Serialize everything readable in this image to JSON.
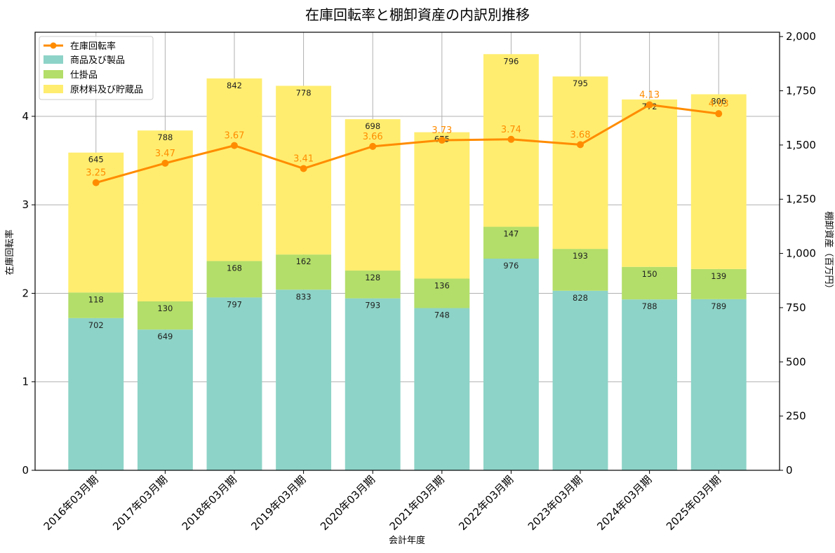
{
  "chart_data": {
    "type": "bar",
    "title": "在庫回転率と棚卸資産の内訳別推移",
    "xlabel": "会計年度",
    "ylabel_left": "在庫回転率",
    "ylabel_right": "棚卸資産（百万円）",
    "categories": [
      "2016年03月期",
      "2017年03月期",
      "2018年03月期",
      "2019年03月期",
      "2020年03月期",
      "2021年03月期",
      "2022年03月期",
      "2023年03月期",
      "2024年03月期",
      "2025年03月期"
    ],
    "ylim_left": [
      0,
      4.95
    ],
    "ylim_right": [
      0,
      2020
    ],
    "yticks_left": [
      "0",
      "1",
      "2",
      "3",
      "4"
    ],
    "yticks_right": [
      "0",
      "250",
      "500",
      "750",
      "1,000",
      "1,250",
      "1,500",
      "1,750",
      "2,000"
    ],
    "grid": true,
    "legend_position": "top-left",
    "stacked_series": [
      {
        "name": "商品及び製品",
        "color": "#8dd3c7",
        "values": [
          702,
          649,
          797,
          833,
          793,
          748,
          976,
          828,
          788,
          789
        ]
      },
      {
        "name": "仕掛品",
        "color": "#b3de69",
        "values": [
          118,
          130,
          168,
          162,
          128,
          136,
          147,
          193,
          150,
          139
        ]
      },
      {
        "name": "原材料及び貯蔵品",
        "color": "#ffed6f",
        "values": [
          645,
          788,
          842,
          778,
          698,
          675,
          796,
          795,
          772,
          806
        ]
      }
    ],
    "line_series": {
      "name": "在庫回転率",
      "color": "#ff8c00",
      "values": [
        3.25,
        3.47,
        3.67,
        3.41,
        3.66,
        3.73,
        3.74,
        3.68,
        4.13,
        4.03
      ],
      "labels": [
        "3.25",
        "3.47",
        "3.67",
        "3.41",
        "3.66",
        "3.73",
        "3.74",
        "3.68",
        "4.13",
        "4.03"
      ]
    }
  }
}
